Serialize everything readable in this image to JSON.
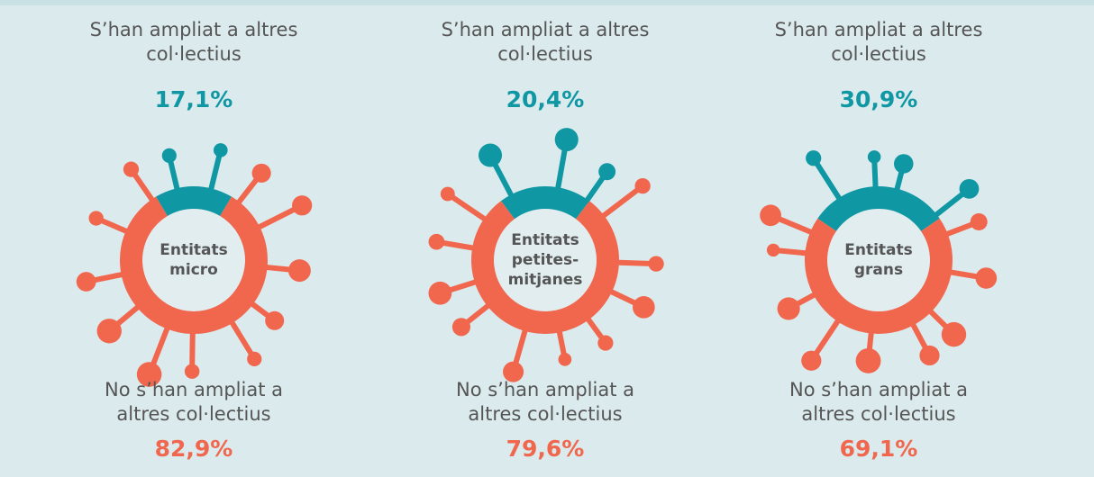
{
  "chart_data": [
    {
      "type": "donut",
      "center_label": "Entitats micro",
      "categories": [
        "S’han ampliat a altres col·lectius",
        "No s’han ampliat a altres col·lectius"
      ],
      "values": [
        17.1,
        82.9
      ],
      "value_labels": [
        "17,1%",
        "82,9%"
      ],
      "colors": [
        "#0f97a3",
        "#f0674e"
      ]
    },
    {
      "type": "donut",
      "center_label": "Entitats petites-mitjanes",
      "categories": [
        "S’han ampliat a altres col·lectius",
        "No s’han ampliat a altres col·lectius"
      ],
      "values": [
        20.4,
        79.6
      ],
      "value_labels": [
        "20,4%",
        "79,6%"
      ],
      "colors": [
        "#0f97a3",
        "#f0674e"
      ]
    },
    {
      "type": "donut",
      "center_label": "Entitats grans",
      "categories": [
        "S’han ampliat a altres col·lectius",
        "No s’han ampliat a altres col·lectius"
      ],
      "values": [
        30.9,
        69.1
      ],
      "value_labels": [
        "30,9%",
        "69,1%"
      ],
      "colors": [
        "#0f97a3",
        "#f0674e"
      ]
    }
  ]
}
